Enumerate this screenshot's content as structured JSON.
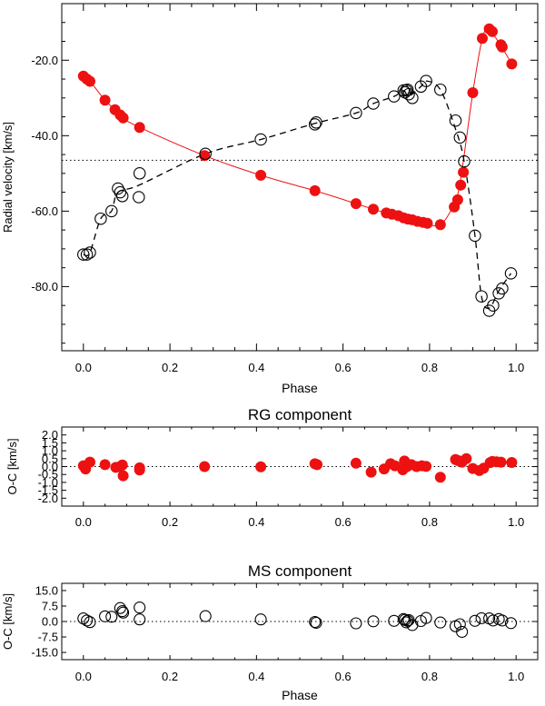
{
  "chart_data": [
    {
      "type": "scatter",
      "title": "",
      "xlabel": "Phase",
      "ylabel": "Radial velocity [km/s]",
      "xlim": [
        -0.05,
        1.05
      ],
      "ylim": [
        -97,
        -5
      ],
      "xticks": [
        0.0,
        0.2,
        0.4,
        0.6,
        0.8,
        1.0
      ],
      "xtick_labels": [
        "0.0",
        "0.2",
        "0.4",
        "0.6",
        "0.8",
        "1.0"
      ],
      "yticks": [
        -80,
        -60,
        -40,
        -20
      ],
      "ytick_labels": [
        "-80.0",
        "-60.0",
        "-40.0",
        "-20.0"
      ],
      "systemic_velocity": -46.5,
      "grid": false,
      "colors": {
        "rg": "#ee1111",
        "ms": "#000000"
      },
      "series": [
        {
          "marker": "filled-circle",
          "x": [
            0.0,
            0.008,
            0.015,
            0.05,
            0.073,
            0.085,
            0.092,
            0.13,
            0.28,
            0.41,
            0.535,
            0.63,
            0.67,
            0.7,
            0.713,
            0.728,
            0.74,
            0.75,
            0.76,
            0.772,
            0.785,
            0.795,
            0.825,
            0.857,
            0.865,
            0.872,
            0.878,
            0.9,
            0.922,
            0.938,
            0.945,
            0.965,
            0.968,
            0.99
          ],
          "y": [
            -24.2,
            -25.0,
            -25.6,
            -30.6,
            -33.1,
            -34.5,
            -35.3,
            -37.8,
            -45.3,
            -50.5,
            -54.6,
            -58.0,
            -59.5,
            -60.5,
            -60.8,
            -61.2,
            -61.8,
            -62.1,
            -62.3,
            -62.7,
            -63.0,
            -63.2,
            -63.6,
            -58.9,
            -57.0,
            -53.1,
            -49.7,
            -28.6,
            -14.2,
            -11.7,
            -12.4,
            -15.9,
            -16.5,
            -21.0
          ]
        },
        {
          "marker": "open-circle",
          "x": [
            0.0,
            0.008,
            0.015,
            0.04,
            0.065,
            0.08,
            0.085,
            0.09,
            0.128,
            0.13,
            0.282,
            0.41,
            0.535,
            0.538,
            0.63,
            0.67,
            0.718,
            0.74,
            0.743,
            0.746,
            0.749,
            0.752,
            0.76,
            0.78,
            0.792,
            0.825,
            0.86,
            0.87,
            0.88,
            0.905,
            0.92,
            0.938,
            0.947,
            0.96,
            0.968,
            0.988
          ],
          "y": [
            -71.5,
            -71.5,
            -71.0,
            -62.0,
            -60.0,
            -54.0,
            -55.0,
            -56.0,
            -56.3,
            -50.0,
            -44.8,
            -41.0,
            -37.0,
            -36.5,
            -34.0,
            -31.5,
            -29.6,
            -28.0,
            -28.5,
            -28.0,
            -27.8,
            -29.0,
            -30.0,
            -27.0,
            -25.5,
            -27.8,
            -36.0,
            -40.5,
            -46.8,
            -66.5,
            -82.6,
            -86.4,
            -85.0,
            -81.8,
            -80.5,
            -76.5
          ]
        }
      ]
    },
    {
      "type": "scatter",
      "title": "RG component",
      "xlabel": "",
      "ylabel": "O-C [km/s]",
      "xlim": [
        -0.05,
        1.05
      ],
      "ylim": [
        -2.5,
        2.5
      ],
      "xticks": [
        0.0,
        0.2,
        0.4,
        0.6,
        0.8,
        1.0
      ],
      "xtick_labels": [
        "0.0",
        "0.2",
        "0.4",
        "0.6",
        "0.8",
        "1.0"
      ],
      "yticks": [
        2.0,
        1.5,
        1.0,
        0.5,
        0.0,
        -0.5,
        -1.0,
        -1.5,
        -2.0
      ],
      "ytick_labels": [
        "2.0",
        "1.5",
        "1.0",
        "0.5",
        "0.0",
        "-0.5",
        "-1.0",
        "-1.5",
        "-2.0"
      ],
      "grid": false,
      "series": [
        {
          "marker": "filled-circle",
          "x": [
            0.0,
            0.005,
            0.015,
            0.05,
            0.075,
            0.085,
            0.09,
            0.092,
            0.13,
            0.13,
            0.28,
            0.41,
            0.535,
            0.54,
            0.63,
            0.665,
            0.695,
            0.71,
            0.72,
            0.738,
            0.742,
            0.748,
            0.758,
            0.77,
            0.782,
            0.792,
            0.825,
            0.86,
            0.866,
            0.875,
            0.885,
            0.9,
            0.915,
            0.925,
            0.94,
            0.945,
            0.955,
            0.965,
            0.99
          ],
          "y": [
            0.05,
            -0.15,
            0.28,
            0.12,
            -0.05,
            0.0,
            0.1,
            -0.58,
            -0.08,
            -0.22,
            0.0,
            -0.02,
            0.18,
            0.12,
            0.22,
            -0.35,
            -0.15,
            0.18,
            0.05,
            -0.2,
            0.35,
            0.0,
            0.12,
            0.0,
            0.05,
            0.02,
            -0.68,
            0.45,
            0.38,
            0.28,
            0.5,
            -0.12,
            -0.25,
            -0.1,
            0.25,
            0.32,
            0.3,
            0.28,
            0.26
          ]
        }
      ]
    },
    {
      "type": "scatter",
      "title": "MS component",
      "xlabel": "Phase",
      "ylabel": "O-C [km/s]",
      "xlim": [
        -0.05,
        1.05
      ],
      "ylim": [
        -18.5,
        18.5
      ],
      "xticks": [
        0.0,
        0.2,
        0.4,
        0.6,
        0.8,
        1.0
      ],
      "xtick_labels": [
        "0.0",
        "0.2",
        "0.4",
        "0.6",
        "0.8",
        "1.0"
      ],
      "yticks": [
        15.0,
        7.5,
        0.0,
        -7.5,
        -15.0
      ],
      "ytick_labels": [
        "15.0",
        "7.5",
        "0.0",
        "-7.5",
        "-15.0"
      ],
      "grid": false,
      "series": [
        {
          "marker": "open-circle",
          "x": [
            0.0,
            0.008,
            0.015,
            0.05,
            0.065,
            0.085,
            0.09,
            0.092,
            0.13,
            0.13,
            0.282,
            0.41,
            0.535,
            0.538,
            0.63,
            0.67,
            0.718,
            0.74,
            0.743,
            0.746,
            0.749,
            0.752,
            0.76,
            0.78,
            0.792,
            0.825,
            0.86,
            0.87,
            0.875,
            0.905,
            0.92,
            0.938,
            0.947,
            0.96,
            0.968,
            0.988
          ],
          "y": [
            1.5,
            0.5,
            -0.3,
            2.5,
            2.3,
            6.5,
            5.0,
            4.3,
            6.8,
            1.0,
            2.6,
            1.0,
            -0.2,
            -0.6,
            -0.9,
            0.1,
            0.3,
            1.2,
            0.8,
            -0.4,
            0.3,
            0.7,
            -1.7,
            0.2,
            1.7,
            -0.5,
            -2.3,
            -1.3,
            -5.0,
            0.3,
            1.6,
            1.5,
            0.5,
            1.2,
            0.5,
            -0.8
          ]
        }
      ]
    }
  ]
}
